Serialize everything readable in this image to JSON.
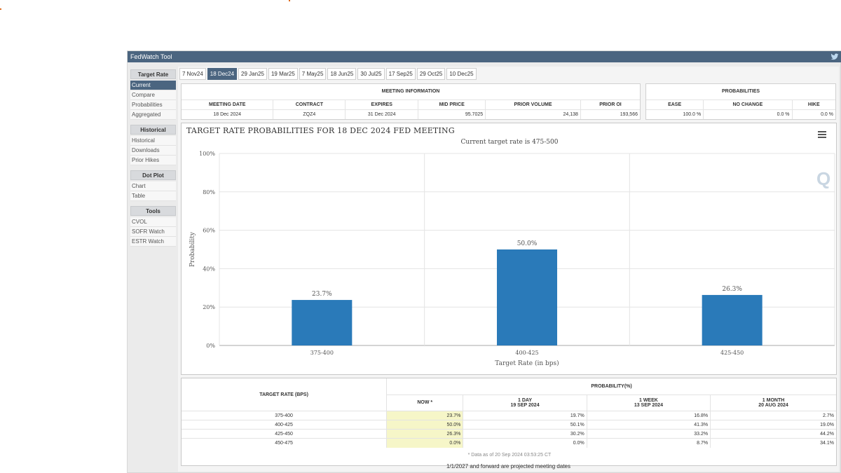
{
  "window": {
    "title": "FedWatch Tool"
  },
  "sidebar": {
    "sections": [
      {
        "heading": "Target Rate",
        "items": [
          "Current",
          "Compare",
          "Probabilities",
          "Aggregated"
        ]
      },
      {
        "heading": "Historical",
        "items": [
          "Historical",
          "Downloads",
          "Prior Hikes"
        ]
      },
      {
        "heading": "Dot Plot",
        "items": [
          "Chart",
          "Table"
        ]
      },
      {
        "heading": "Tools",
        "items": [
          "CVOL",
          "SOFR Watch",
          "ESTR Watch"
        ]
      }
    ],
    "active_item": "Current"
  },
  "tabs": [
    "7 Nov24",
    "18 Dec24",
    "29 Jan25",
    "19 Mar25",
    "7 May25",
    "18 Jun25",
    "30 Jul25",
    "17 Sep25",
    "29 Oct25",
    "10 Dec25"
  ],
  "active_tab": "18 Dec24",
  "meeting_info": {
    "heading": "MEETING INFORMATION",
    "columns": [
      "MEETING DATE",
      "CONTRACT",
      "EXPIRES",
      "MID PRICE",
      "PRIOR VOLUME",
      "PRIOR OI"
    ],
    "values": [
      "18 Dec 2024",
      "ZQZ4",
      "31 Dec 2024",
      "95.7025",
      "24,138",
      "193,566"
    ]
  },
  "probabilities": {
    "heading": "PROBABILITIES",
    "columns": [
      "EASE",
      "NO CHANGE",
      "HIKE"
    ],
    "values": [
      "100.0 %",
      "0.0 %",
      "0.0 %"
    ]
  },
  "chart": {
    "title": "TARGET RATE PROBABILITIES FOR 18 DEC 2024 FED MEETING",
    "subtitle": "Current target rate is 475-500"
  },
  "chart_data": {
    "type": "bar",
    "categories": [
      "375-400",
      "400-425",
      "425-450"
    ],
    "values": [
      23.7,
      50.0,
      26.3
    ],
    "data_labels": [
      "23.7%",
      "50.0%",
      "26.3%"
    ],
    "xlabel": "Target Rate (in bps)",
    "ylabel": "Probability",
    "ylim": [
      0,
      100
    ],
    "yticks": [
      "0%",
      "20%",
      "40%",
      "60%",
      "80%",
      "100%"
    ],
    "bar_color": "#2a7ab9",
    "grid": true
  },
  "prob_table": {
    "col_target": "TARGET RATE (BPS)",
    "col_prob": "PROBABILITY(%)",
    "sub_headers": [
      {
        "l1": "NOW *",
        "l2": ""
      },
      {
        "l1": "1 DAY",
        "l2": "19 SEP 2024"
      },
      {
        "l1": "1 WEEK",
        "l2": "13 SEP 2024"
      },
      {
        "l1": "1 MONTH",
        "l2": "20 AUG 2024"
      }
    ],
    "rows": [
      [
        "375-400",
        "23.7%",
        "19.7%",
        "16.8%",
        "2.7%"
      ],
      [
        "400-425",
        "50.0%",
        "50.1%",
        "41.3%",
        "19.0%"
      ],
      [
        "425-450",
        "26.3%",
        "30.2%",
        "33.2%",
        "44.2%"
      ],
      [
        "450-475",
        "0.0%",
        "0.0%",
        "8.7%",
        "34.1%"
      ]
    ],
    "footnote": "* Data as of 20 Sep 2024 03:53:25 CT"
  },
  "projection_note": "1/1/2027 and forward are projected meeting dates",
  "colors": {
    "titlebar": "#4b6580",
    "accent_orange": "#e06a1b",
    "highlight": "#f6f6c8"
  }
}
